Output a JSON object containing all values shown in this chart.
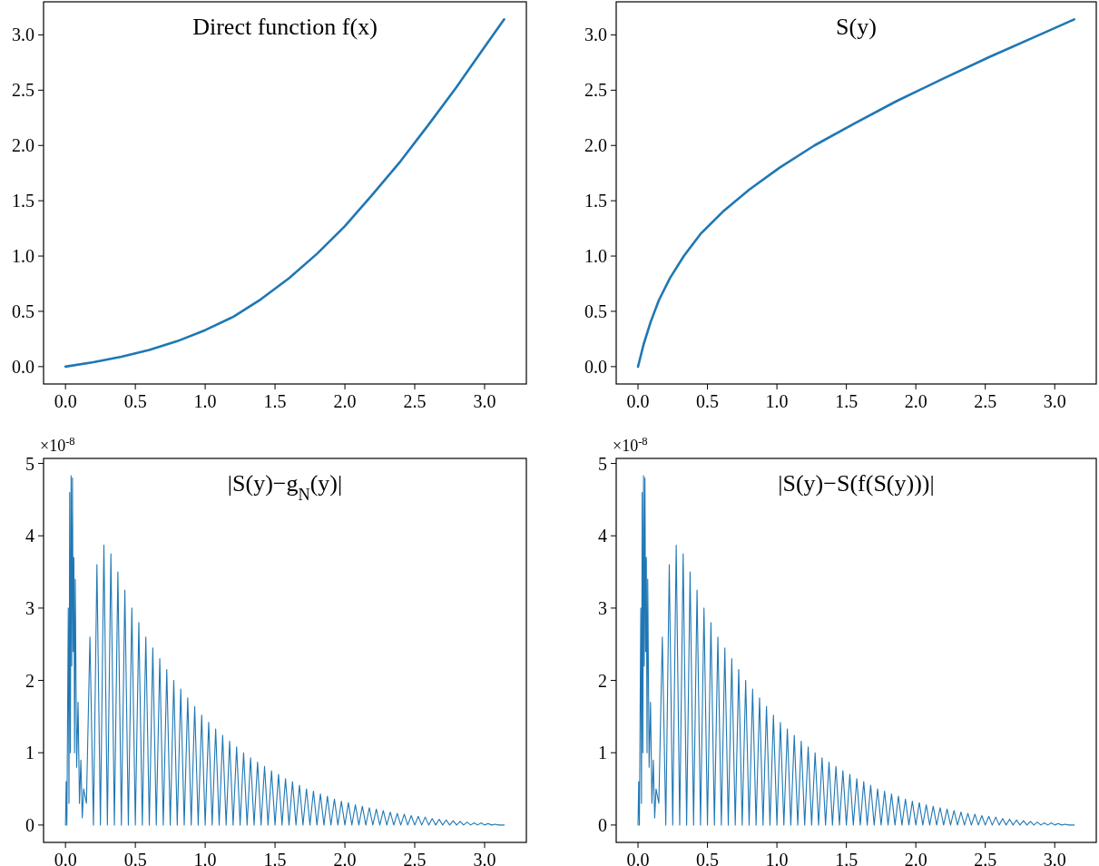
{
  "chart_data": [
    {
      "type": "line",
      "title": "Direct function f(x)",
      "xlim": [
        -0.157,
        3.299
      ],
      "ylim": [
        -0.157,
        3.299
      ],
      "xticks": [
        {
          "value": 0,
          "label": "0.0"
        },
        0.5,
        {
          "value": 1,
          "label": "1.0"
        },
        1.5,
        {
          "value": 2,
          "label": "2.0"
        },
        2.5,
        {
          "value": 3,
          "label": "3.0"
        }
      ],
      "yticks": [
        {
          "value": 0,
          "label": "0.0"
        },
        0.5,
        {
          "value": 1,
          "label": "1.0"
        },
        1.5,
        {
          "value": 2,
          "label": "2.0"
        },
        2.5,
        {
          "value": 3,
          "label": "3.0"
        }
      ],
      "series": [
        {
          "color": "#1f77b4",
          "x": [
            0,
            0.2,
            0.4,
            0.6,
            0.8,
            1.0,
            1.2,
            1.4,
            1.6,
            1.8,
            2.0,
            2.2,
            2.4,
            2.6,
            2.8,
            3.0,
            3.14
          ],
          "values": [
            0,
            0.04,
            0.09,
            0.15,
            0.23,
            0.33,
            0.45,
            0.61,
            0.8,
            1.02,
            1.27,
            1.56,
            1.86,
            2.19,
            2.53,
            2.89,
            3.14
          ]
        }
      ]
    },
    {
      "type": "line",
      "title": "S(y)",
      "xlim": [
        -0.157,
        3.299
      ],
      "ylim": [
        -0.157,
        3.299
      ],
      "xticks": [
        {
          "value": 0,
          "label": "0.0"
        },
        0.5,
        {
          "value": 1,
          "label": "1.0"
        },
        1.5,
        {
          "value": 2,
          "label": "2.0"
        },
        2.5,
        {
          "value": 3,
          "label": "3.0"
        }
      ],
      "yticks": [
        {
          "value": 0,
          "label": "0.0"
        },
        0.5,
        {
          "value": 1,
          "label": "1.0"
        },
        1.5,
        {
          "value": 2,
          "label": "2.0"
        },
        2.5,
        {
          "value": 3,
          "label": "3.0"
        }
      ],
      "series": [
        {
          "color": "#1f77b4",
          "x": [
            0,
            0.01,
            0.02,
            0.04,
            0.09,
            0.15,
            0.23,
            0.33,
            0.45,
            0.61,
            0.8,
            1.02,
            1.27,
            1.56,
            1.86,
            2.19,
            2.53,
            2.89,
            3.14
          ],
          "values": [
            0,
            0.05,
            0.1,
            0.2,
            0.4,
            0.6,
            0.8,
            1.0,
            1.2,
            1.4,
            1.6,
            1.8,
            2.0,
            2.2,
            2.4,
            2.6,
            2.8,
            3.0,
            3.14
          ]
        }
      ]
    },
    {
      "type": "line",
      "title": "|S(y)−g$_{N}$(y)|",
      "annotations": [
        "×10$^{-8}$"
      ],
      "xlim": [
        -0.157,
        3.299
      ],
      "ylim": [
        -0.24,
        5.07
      ],
      "xticks": [
        {
          "value": 0,
          "label": "0.0"
        },
        0.5,
        {
          "value": 1,
          "label": "1.0"
        },
        1.5,
        {
          "value": 2,
          "label": "2.0"
        },
        2.5,
        {
          "value": 3,
          "label": "3.0"
        }
      ],
      "yticks": [
        0,
        1,
        2,
        3,
        4,
        5
      ],
      "series": [
        {
          "color": "#1f77b4",
          "x": [
            0,
            0.005,
            0.01,
            0.02,
            0.025,
            0.03,
            0.035,
            0.04,
            0.045,
            0.05,
            0.055,
            0.06,
            0.065,
            0.07,
            0.08,
            0.09,
            0.1,
            0.11,
            0.12,
            0.13,
            0.15,
            0.175,
            0.2,
            0.225,
            0.25,
            0.275,
            0.3,
            0.325,
            0.35,
            0.375,
            0.4,
            0.425,
            0.45,
            0.475,
            0.5,
            0.525,
            0.55,
            0.575,
            0.6,
            0.625,
            0.65,
            0.675,
            0.7,
            0.725,
            0.75,
            0.775,
            0.8,
            0.825,
            0.85,
            0.875,
            0.9,
            0.925,
            0.95,
            0.975,
            1.0,
            1.025,
            1.05,
            1.075,
            1.1,
            1.125,
            1.15,
            1.175,
            1.2,
            1.225,
            1.25,
            1.275,
            1.3,
            1.325,
            1.35,
            1.375,
            1.4,
            1.425,
            1.45,
            1.475,
            1.5,
            1.525,
            1.55,
            1.575,
            1.6,
            1.625,
            1.65,
            1.675,
            1.7,
            1.725,
            1.75,
            1.775,
            1.8,
            1.825,
            1.85,
            1.875,
            1.9,
            1.925,
            1.95,
            1.975,
            2.0,
            2.025,
            2.05,
            2.075,
            2.1,
            2.125,
            2.15,
            2.175,
            2.2,
            2.225,
            2.25,
            2.275,
            2.3,
            2.325,
            2.35,
            2.375,
            2.4,
            2.425,
            2.45,
            2.475,
            2.5,
            2.525,
            2.55,
            2.575,
            2.6,
            2.625,
            2.65,
            2.675,
            2.7,
            2.725,
            2.75,
            2.775,
            2.8,
            2.825,
            2.85,
            2.875,
            2.9,
            2.925,
            2.95,
            2.975,
            3.0,
            3.025,
            3.05,
            3.075,
            3.1,
            3.14
          ],
          "values": [
            0,
            0.6,
            0,
            3.0,
            0.3,
            4.6,
            1.0,
            4.83,
            2.2,
            4.8,
            2.4,
            3.7,
            1.0,
            3.4,
            0.8,
            1.7,
            0.3,
            0.9,
            0.1,
            0.5,
            0.3,
            2.6,
            0,
            3.6,
            0,
            3.87,
            0,
            3.75,
            0,
            3.5,
            0,
            3.25,
            0,
            3.0,
            0,
            2.8,
            0,
            2.6,
            0,
            2.45,
            0,
            2.3,
            0,
            2.15,
            0,
            2.0,
            0,
            1.88,
            0,
            1.76,
            0,
            1.64,
            0,
            1.52,
            0,
            1.42,
            0,
            1.33,
            0,
            1.24,
            0,
            1.16,
            0,
            1.08,
            0,
            1.0,
            0,
            0.93,
            0,
            0.87,
            0,
            0.81,
            0,
            0.75,
            0,
            0.7,
            0,
            0.64,
            0,
            0.6,
            0,
            0.55,
            0,
            0.5,
            0,
            0.47,
            0,
            0.43,
            0,
            0.4,
            0,
            0.36,
            0,
            0.33,
            0,
            0.31,
            0,
            0.28,
            0,
            0.26,
            0,
            0.24,
            0,
            0.22,
            0,
            0.2,
            0,
            0.18,
            0,
            0.16,
            0,
            0.15,
            0,
            0.13,
            0,
            0.12,
            0,
            0.11,
            0,
            0.09,
            0,
            0.08,
            0,
            0.07,
            0,
            0.06,
            0,
            0.05,
            0,
            0.04,
            0,
            0.03,
            0,
            0.03,
            0,
            0.02,
            0,
            0.01,
            0,
            0
          ]
        }
      ]
    },
    {
      "type": "line",
      "title": "|S(y)−S(f(S(y)))|",
      "annotations": [
        "×10$^{-8}$"
      ],
      "xlim": [
        -0.157,
        3.299
      ],
      "ylim": [
        -0.24,
        5.07
      ],
      "xticks": [
        {
          "value": 0,
          "label": "0.0"
        },
        0.5,
        {
          "value": 1,
          "label": "1.0"
        },
        1.5,
        {
          "value": 2,
          "label": "2.0"
        },
        2.5,
        {
          "value": 3,
          "label": "3.0"
        }
      ],
      "yticks": [
        0,
        1,
        2,
        3,
        4,
        5
      ],
      "series": [
        {
          "color": "#1f77b4",
          "x": [
            0,
            0.005,
            0.01,
            0.02,
            0.025,
            0.03,
            0.035,
            0.04,
            0.045,
            0.05,
            0.055,
            0.06,
            0.065,
            0.07,
            0.08,
            0.09,
            0.1,
            0.11,
            0.12,
            0.13,
            0.15,
            0.175,
            0.2,
            0.225,
            0.25,
            0.275,
            0.3,
            0.325,
            0.35,
            0.375,
            0.4,
            0.425,
            0.45,
            0.475,
            0.5,
            0.525,
            0.55,
            0.575,
            0.6,
            0.625,
            0.65,
            0.675,
            0.7,
            0.725,
            0.75,
            0.775,
            0.8,
            0.825,
            0.85,
            0.875,
            0.9,
            0.925,
            0.95,
            0.975,
            1.0,
            1.025,
            1.05,
            1.075,
            1.1,
            1.125,
            1.15,
            1.175,
            1.2,
            1.225,
            1.25,
            1.275,
            1.3,
            1.325,
            1.35,
            1.375,
            1.4,
            1.425,
            1.45,
            1.475,
            1.5,
            1.525,
            1.55,
            1.575,
            1.6,
            1.625,
            1.65,
            1.675,
            1.7,
            1.725,
            1.75,
            1.775,
            1.8,
            1.825,
            1.85,
            1.875,
            1.9,
            1.925,
            1.95,
            1.975,
            2.0,
            2.025,
            2.05,
            2.075,
            2.1,
            2.125,
            2.15,
            2.175,
            2.2,
            2.225,
            2.25,
            2.275,
            2.3,
            2.325,
            2.35,
            2.375,
            2.4,
            2.425,
            2.45,
            2.475,
            2.5,
            2.525,
            2.55,
            2.575,
            2.6,
            2.625,
            2.65,
            2.675,
            2.7,
            2.725,
            2.75,
            2.775,
            2.8,
            2.825,
            2.85,
            2.875,
            2.9,
            2.925,
            2.95,
            2.975,
            3.0,
            3.025,
            3.05,
            3.075,
            3.1,
            3.14
          ],
          "values": [
            0,
            0.6,
            0,
            3.0,
            0.3,
            4.6,
            1.0,
            4.83,
            2.2,
            4.8,
            2.4,
            3.7,
            1.0,
            3.4,
            0.8,
            1.7,
            0.3,
            0.9,
            0.1,
            0.5,
            0.3,
            2.6,
            0,
            3.6,
            0,
            3.87,
            0,
            3.75,
            0,
            3.5,
            0,
            3.25,
            0,
            3.0,
            0,
            2.8,
            0,
            2.6,
            0,
            2.45,
            0,
            2.3,
            0,
            2.15,
            0,
            2.0,
            0,
            1.88,
            0,
            1.76,
            0,
            1.64,
            0,
            1.52,
            0,
            1.42,
            0,
            1.33,
            0,
            1.24,
            0,
            1.16,
            0,
            1.08,
            0,
            1.0,
            0,
            0.93,
            0,
            0.87,
            0,
            0.81,
            0,
            0.75,
            0,
            0.7,
            0,
            0.64,
            0,
            0.6,
            0,
            0.55,
            0,
            0.5,
            0,
            0.47,
            0,
            0.43,
            0,
            0.4,
            0,
            0.36,
            0,
            0.33,
            0,
            0.31,
            0,
            0.28,
            0,
            0.26,
            0,
            0.24,
            0,
            0.22,
            0,
            0.2,
            0,
            0.18,
            0,
            0.16,
            0,
            0.15,
            0,
            0.13,
            0,
            0.12,
            0,
            0.11,
            0,
            0.09,
            0,
            0.08,
            0,
            0.07,
            0,
            0.06,
            0,
            0.05,
            0,
            0.04,
            0,
            0.03,
            0,
            0.03,
            0,
            0.02,
            0,
            0.01,
            0,
            0
          ]
        }
      ]
    }
  ]
}
